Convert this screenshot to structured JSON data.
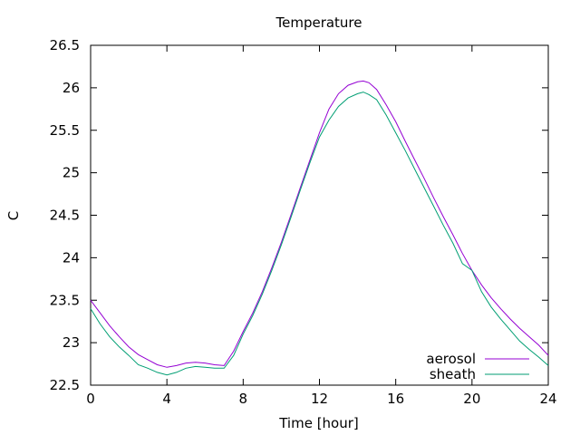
{
  "chart_data": {
    "type": "line",
    "title": "Temperature",
    "xlabel": "Time [hour]",
    "ylabel": "C",
    "xlim": [
      0,
      24
    ],
    "ylim": [
      22.5,
      26.5
    ],
    "xticks": [
      0,
      4,
      8,
      12,
      16,
      20,
      24
    ],
    "xtick_labels": [
      "0",
      "4",
      "8",
      "12",
      "16",
      "20",
      "24"
    ],
    "yticks": [
      22.5,
      23,
      23.5,
      24,
      24.5,
      25,
      25.5,
      26,
      26.5
    ],
    "ytick_labels": [
      "22.5",
      "23",
      "23.5",
      "24",
      "24.5",
      "25",
      "25.5",
      "26",
      "26.5"
    ],
    "grid": false,
    "legend_position": "bottom-right",
    "series": [
      {
        "name": "aerosol",
        "color": "#9400d3",
        "x": [
          0,
          0.5,
          1,
          1.5,
          2,
          2.5,
          3,
          3.5,
          4,
          4.5,
          5,
          5.5,
          6,
          6.5,
          7,
          7.5,
          8,
          8.5,
          9,
          9.5,
          10,
          10.5,
          11,
          11.5,
          12,
          12.5,
          13,
          13.5,
          14,
          14.3,
          14.6,
          15,
          15.5,
          16,
          16.5,
          17,
          17.5,
          18,
          18.5,
          19,
          19.5,
          20,
          20.5,
          21,
          21.5,
          22,
          22.5,
          23,
          23.5,
          24
        ],
        "y": [
          23.5,
          23.35,
          23.2,
          23.07,
          22.95,
          22.86,
          22.8,
          22.74,
          22.71,
          22.73,
          22.76,
          22.77,
          22.76,
          22.74,
          22.73,
          22.9,
          23.13,
          23.35,
          23.6,
          23.88,
          24.18,
          24.5,
          24.83,
          25.15,
          25.47,
          25.75,
          25.93,
          26.03,
          26.07,
          26.08,
          26.06,
          25.98,
          25.8,
          25.6,
          25.37,
          25.15,
          24.93,
          24.7,
          24.48,
          24.27,
          24.05,
          23.85,
          23.68,
          23.53,
          23.4,
          23.28,
          23.17,
          23.07,
          22.97,
          22.85
        ]
      },
      {
        "name": "sheath",
        "color": "#009e73",
        "x": [
          0,
          0.5,
          1,
          1.5,
          2,
          2.5,
          3,
          3.5,
          4,
          4.5,
          5,
          5.5,
          6,
          6.5,
          7,
          7.5,
          8,
          8.5,
          9,
          9.5,
          10,
          10.5,
          11,
          11.5,
          12,
          12.5,
          13,
          13.5,
          14,
          14.3,
          14.6,
          15,
          15.5,
          16,
          16.5,
          17,
          17.5,
          18,
          18.5,
          19,
          19.5,
          20,
          20.5,
          21,
          21.5,
          22,
          22.5,
          23,
          23.5,
          24
        ],
        "y": [
          23.4,
          23.22,
          23.07,
          22.95,
          22.85,
          22.74,
          22.7,
          22.65,
          22.62,
          22.65,
          22.7,
          22.72,
          22.71,
          22.7,
          22.7,
          22.85,
          23.1,
          23.32,
          23.57,
          23.85,
          24.15,
          24.47,
          24.8,
          25.12,
          25.42,
          25.62,
          25.78,
          25.88,
          25.93,
          25.95,
          25.92,
          25.86,
          25.68,
          25.47,
          25.26,
          25.04,
          24.82,
          24.6,
          24.38,
          24.17,
          23.93,
          23.85,
          23.6,
          23.42,
          23.28,
          23.15,
          23.02,
          22.92,
          22.83,
          22.73
        ]
      }
    ]
  }
}
